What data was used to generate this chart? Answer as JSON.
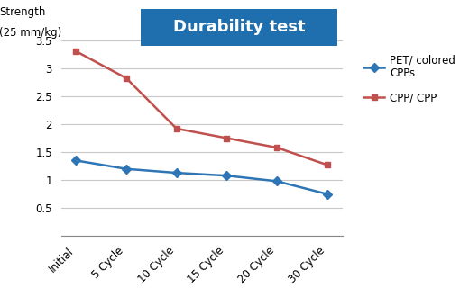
{
  "title": "Durability test",
  "ylabel_line1": "Strength",
  "ylabel_line2": "(25 mm/kg)",
  "categories": [
    "Initial",
    "5 Cycle",
    "10 Cycle",
    "15 Cycle",
    "20 Cycle",
    "30 Cycle"
  ],
  "pet_values": [
    1.35,
    1.2,
    1.13,
    1.08,
    0.98,
    0.75
  ],
  "cpp_values": [
    3.3,
    2.82,
    1.92,
    1.75,
    1.58,
    1.27
  ],
  "pet_color": "#2E75B6",
  "cpp_color": "#C0504D",
  "title_bg_color": "#1F6FAE",
  "title_text_color": "#FFFFFF",
  "ylim": [
    0,
    3.6
  ],
  "yticks": [
    0,
    0.5,
    1.0,
    1.5,
    2.0,
    2.5,
    3.0,
    3.5
  ],
  "legend_pet": "PET/ colored\nCPPs",
  "legend_cpp": "CPP/ CPP",
  "grid_color": "#C8C8C8",
  "background_color": "#FFFFFF"
}
